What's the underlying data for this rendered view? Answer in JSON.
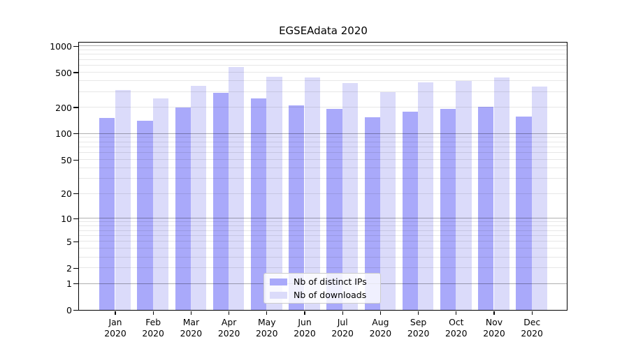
{
  "chart_data": {
    "type": "bar",
    "title": "EGSEAdata 2020",
    "categories": [
      "Jan",
      "Feb",
      "Mar",
      "Apr",
      "May",
      "Jun",
      "Jul",
      "Aug",
      "Sep",
      "Oct",
      "Nov",
      "Dec"
    ],
    "category_year": "2020",
    "series": [
      {
        "name": "Nb of distinct IPs",
        "color": "#a9a9fa",
        "values": [
          151,
          140,
          200,
          292,
          252,
          210,
          192,
          154,
          176,
          190,
          202,
          155
        ]
      },
      {
        "name": "Nb of downloads",
        "color": "#dbdbfa",
        "values": [
          314,
          252,
          350,
          573,
          444,
          436,
          377,
          297,
          387,
          400,
          439,
          342
        ]
      }
    ],
    "yscale": "log10(value+1)",
    "ylim": [
      0,
      1000
    ],
    "yticks": [
      0,
      1,
      2,
      5,
      10,
      20,
      50,
      100,
      200,
      500,
      1000
    ],
    "grid": "horizontal log minor+major, drawn over bars",
    "legend_position": "inside lower center",
    "colors": {
      "major_gridline": "#b0b0b0",
      "minor_gridline": "#e7e7e7",
      "frame": "#000000",
      "background": "#ffffff"
    }
  }
}
